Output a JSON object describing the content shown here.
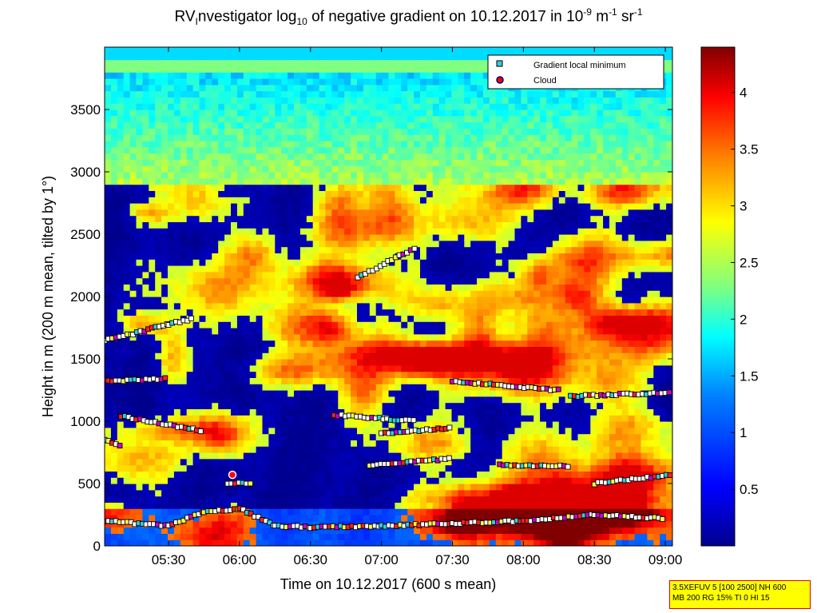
{
  "title": {
    "rv": "RV",
    "sub_i": "I",
    "main": "nvestigator log",
    "sub_10": "10",
    "rest": " of negative gradient on 10.12.2017 in 10",
    "sup_1": "-9",
    "unit1": " m",
    "sup_2": "-1",
    "unit2": " sr",
    "sup_3": "-1"
  },
  "stamp": {
    "line1": "3.5XEFUV 5 [100 2500] NH 600",
    "line2": "MB 200 RG 15% TI 0 HI 15"
  },
  "chart_data": {
    "type": "heatmap",
    "xlabel": "Time on 10.12.2017 (600 s mean)",
    "ylabel": "Height in m (200 m mean, tilted by 1°)",
    "x_ticks": [
      "05:30",
      "06:00",
      "06:30",
      "07:00",
      "07:30",
      "08:00",
      "08:30",
      "09:00"
    ],
    "xlim": [
      "05:03",
      "09:03"
    ],
    "y_ticks": [
      0,
      500,
      1000,
      1500,
      2000,
      2500,
      3000,
      3500
    ],
    "ylim": [
      0,
      4000
    ],
    "colorbar": {
      "ticks": [
        0.5,
        1,
        1.5,
        2,
        2.5,
        3,
        3.5,
        4
      ],
      "range": [
        0,
        4.4
      ],
      "colormap": [
        "#00008f",
        "#0000ff",
        "#0080ff",
        "#00ffff",
        "#80ff80",
        "#ffff00",
        "#ff8000",
        "#ff0000",
        "#800000"
      ]
    },
    "legend": {
      "placement": "top-right",
      "entries": [
        {
          "label": "Gradient local minimum",
          "marker": "square",
          "color": "#33ccdd"
        },
        {
          "label": "Cloud",
          "marker": "circle",
          "color": "#ff0000"
        }
      ]
    },
    "series": [
      {
        "name": "Gradient local minimum",
        "layers": [
          {
            "time": [
              "05:03",
              "05:30",
              "05:45",
              "06:00",
              "06:15",
              "06:30",
              "07:00",
              "07:30",
              "08:00",
              "08:30",
              "09:00"
            ],
            "height": [
              200,
              160,
              270,
              300,
              160,
              150,
              160,
              180,
              200,
              250,
              220
            ]
          },
          {
            "time": [
              "05:03",
              "05:15",
              "05:30",
              "05:40"
            ],
            "height": [
              1650,
              1700,
              1780,
              1820
            ]
          },
          {
            "time": [
              "05:03",
              "05:30"
            ],
            "height": [
              1320,
              1340
            ]
          },
          {
            "time": [
              "05:10",
              "05:45"
            ],
            "height": [
              1040,
              920
            ]
          },
          {
            "time": [
              "05:03",
              "05:10"
            ],
            "height": [
              850,
              800
            ]
          },
          {
            "time": [
              "05:55",
              "06:05"
            ],
            "height": [
              500,
              500
            ]
          },
          {
            "time": [
              "06:40",
              "07:15"
            ],
            "height": [
              1050,
              1000
            ]
          },
          {
            "time": [
              "07:00",
              "07:30"
            ],
            "height": [
              900,
              950
            ]
          },
          {
            "time": [
              "06:55",
              "07:30"
            ],
            "height": [
              650,
              700
            ]
          },
          {
            "time": [
              "07:30",
              "08:15"
            ],
            "height": [
              1320,
              1250
            ]
          },
          {
            "time": [
              "08:20",
              "09:03"
            ],
            "height": [
              1200,
              1230
            ]
          },
          {
            "time": [
              "08:30",
              "09:03"
            ],
            "height": [
              500,
              570
            ]
          },
          {
            "time": [
              "07:50",
              "08:20"
            ],
            "height": [
              650,
              640
            ]
          },
          {
            "time": [
              "06:50",
              "07:15"
            ],
            "height": [
              2150,
              2400
            ]
          }
        ]
      },
      {
        "name": "Cloud",
        "points": [
          {
            "time": "05:57",
            "height": 570
          }
        ]
      }
    ]
  }
}
